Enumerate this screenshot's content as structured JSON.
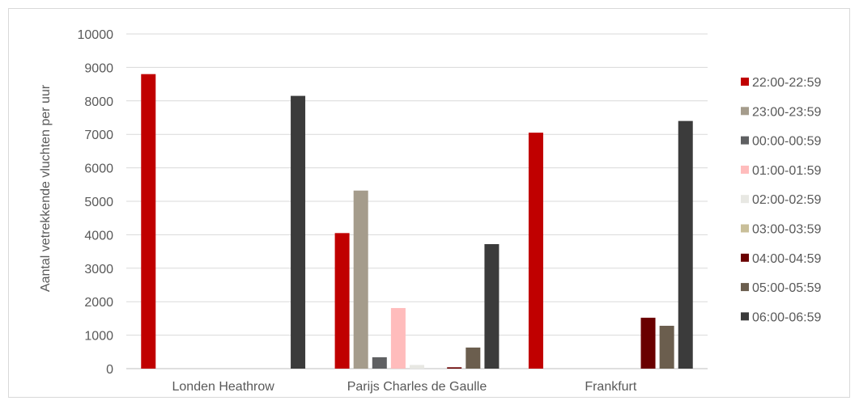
{
  "chart_data": {
    "type": "bar",
    "title": "",
    "xlabel": "",
    "ylabel": "Aantal vetrekkende vluchten per uur",
    "ylim": [
      0,
      10000
    ],
    "yticks": [
      0,
      1000,
      2000,
      3000,
      4000,
      5000,
      6000,
      7000,
      8000,
      9000,
      10000
    ],
    "grid": true,
    "legend_position": "right",
    "categories": [
      "Londen Heathrow",
      "Parijs Charles de Gaulle",
      "Frankfurt"
    ],
    "series": [
      {
        "name": "22:00-22:59",
        "color": "#c00000",
        "values": [
          8800,
          4050,
          7050
        ]
      },
      {
        "name": "23:00-23:59",
        "color": "#a59c8c",
        "values": [
          0,
          5320,
          0
        ]
      },
      {
        "name": "00:00-00:59",
        "color": "#5f6062",
        "values": [
          0,
          340,
          0
        ]
      },
      {
        "name": "01:00-01:59",
        "color": "#ffbcbc",
        "values": [
          0,
          1810,
          0
        ]
      },
      {
        "name": "02:00-02:59",
        "color": "#e8e8e3",
        "values": [
          0,
          110,
          0
        ]
      },
      {
        "name": "03:00-03:59",
        "color": "#c9bf99",
        "values": [
          0,
          0,
          0
        ]
      },
      {
        "name": "04:00-04:59",
        "color": "#6a0000",
        "values": [
          0,
          40,
          1520
        ]
      },
      {
        "name": "05:00-05:59",
        "color": "#6b5e4e",
        "values": [
          0,
          630,
          1280
        ]
      },
      {
        "name": "06:00-06:59",
        "color": "#3b3b3b",
        "values": [
          8150,
          3720,
          7400
        ]
      }
    ]
  }
}
